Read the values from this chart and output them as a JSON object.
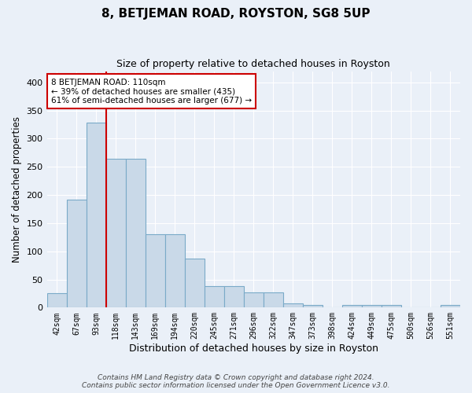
{
  "title": "8, BETJEMAN ROAD, ROYSTON, SG8 5UP",
  "subtitle": "Size of property relative to detached houses in Royston",
  "xlabel": "Distribution of detached houses by size in Royston",
  "ylabel": "Number of detached properties",
  "bar_labels": [
    "42sqm",
    "67sqm",
    "93sqm",
    "118sqm",
    "143sqm",
    "169sqm",
    "194sqm",
    "220sqm",
    "245sqm",
    "271sqm",
    "296sqm",
    "322sqm",
    "347sqm",
    "373sqm",
    "398sqm",
    "424sqm",
    "449sqm",
    "475sqm",
    "500sqm",
    "526sqm",
    "551sqm"
  ],
  "bar_values": [
    25,
    192,
    328,
    265,
    265,
    130,
    130,
    87,
    38,
    38,
    27,
    27,
    8,
    5,
    0,
    5,
    5,
    5,
    0,
    0,
    4
  ],
  "bar_color": "#c9d9e8",
  "bar_edge_color": "#7aaac8",
  "vline_color": "#cc0000",
  "annotation_text": "8 BETJEMAN ROAD: 110sqm\n← 39% of detached houses are smaller (435)\n61% of semi-detached houses are larger (677) →",
  "annotation_box_color": "#ffffff",
  "annotation_box_edge_color": "#cc0000",
  "ylim": [
    0,
    420
  ],
  "yticks": [
    0,
    50,
    100,
    150,
    200,
    250,
    300,
    350,
    400
  ],
  "background_color": "#eaf0f8",
  "grid_color": "#ffffff",
  "footer": "Contains HM Land Registry data © Crown copyright and database right 2024.\nContains public sector information licensed under the Open Government Licence v3.0."
}
